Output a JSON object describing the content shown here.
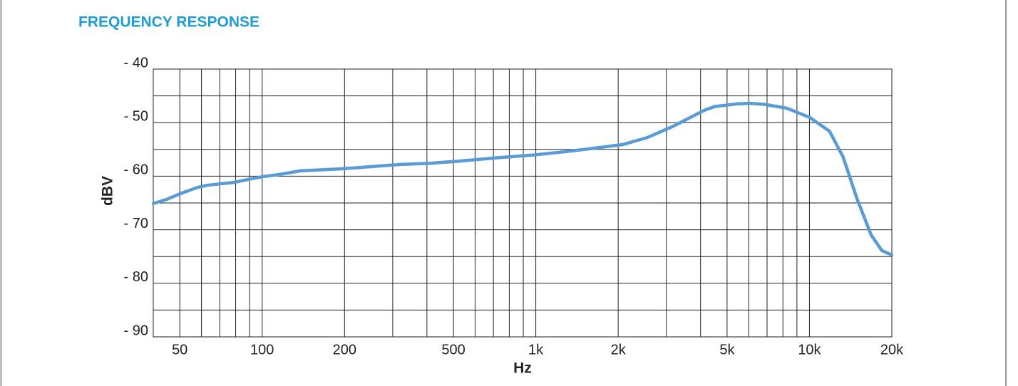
{
  "chart_data": {
    "type": "line",
    "title": "FREQUENCY RESPONSE",
    "x_label": "Hz",
    "y_label": "dBV",
    "log_x": true,
    "grid": true,
    "x": [
      40,
      45,
      50,
      58,
      63,
      71,
      78,
      91,
      100,
      115,
      138,
      166,
      198,
      252,
      321,
      408,
      519,
      744,
      1000,
      1295,
      1624,
      2074,
      2550,
      3140,
      4130,
      4500,
      5420,
      6100,
      6870,
      8250,
      10000,
      11840,
      13270,
      14940,
      16820,
      18400,
      20000
    ],
    "series": [
      {
        "color": "#5b9bd5",
        "values": [
          -65.1,
          -64.3,
          -63.3,
          -62.1,
          -61.7,
          -61.4,
          -61.2,
          -60.5,
          -60.1,
          -59.7,
          -59.0,
          -58.8,
          -58.6,
          -58.2,
          -57.8,
          -57.6,
          -57.2,
          -56.5,
          -56.0,
          -55.4,
          -54.8,
          -54.1,
          -52.8,
          -50.8,
          -47.7,
          -47.0,
          -46.5,
          -46.4,
          -46.6,
          -47.3,
          -49.0,
          -51.6,
          -56.4,
          -64.3,
          -71.0,
          -73.9,
          -74.7
        ]
      }
    ],
    "xlim": [
      40,
      20000
    ],
    "xticks": [
      50,
      100,
      200,
      500,
      {
        "value": 1000,
        "label": "1k"
      },
      {
        "value": 2000,
        "label": "2k"
      },
      {
        "value": 5000,
        "label": "5k"
      },
      {
        "value": 10000,
        "label": "10k"
      },
      {
        "value": 20000,
        "label": "20k"
      }
    ],
    "x_minor_gridlines": [
      60,
      70,
      80,
      90,
      300,
      400,
      600,
      700,
      800,
      900,
      3000,
      4000,
      6000,
      7000,
      8000,
      9000
    ],
    "ylim": [
      -90,
      -40
    ],
    "yticks": [
      {
        "value": -90,
        "label": "- 90"
      },
      {
        "value": -80,
        "label": "- 80"
      },
      {
        "value": -70,
        "label": "- 70"
      },
      {
        "value": -60,
        "label": "- 60"
      },
      {
        "value": -50,
        "label": "- 50"
      },
      {
        "value": -40,
        "label": "- 40"
      }
    ],
    "y_minor_gridlines": [
      -85,
      -75,
      -65,
      -55,
      -45
    ]
  }
}
